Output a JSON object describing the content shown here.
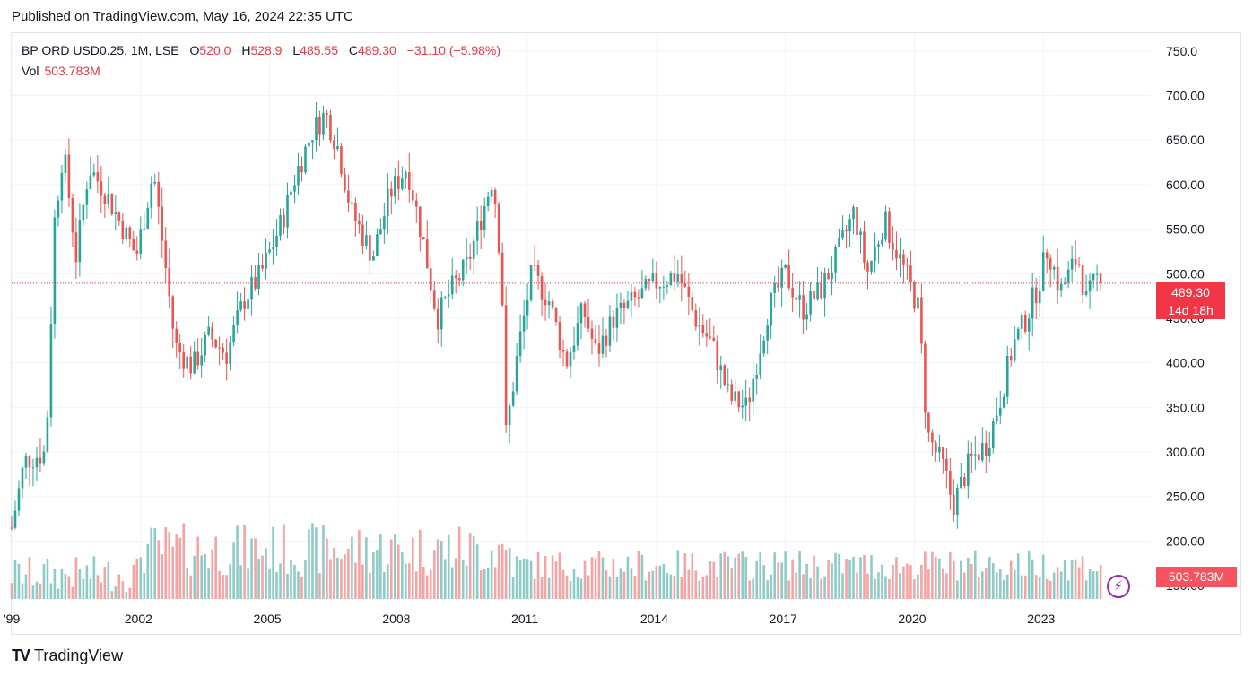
{
  "header": {
    "published": "Published on TradingView.com, May 16, 2024 22:35 UTC"
  },
  "legend": {
    "symbol": "BP ORD USD0.25, 1M, LSE",
    "open_label": "O",
    "open": "520.0",
    "high_label": "H",
    "high": "528.9",
    "low_label": "L",
    "low": "485.55",
    "close_label": "C",
    "close": "489.30",
    "change": "−31.10 (−5.98%)",
    "vol_label": "Vol",
    "vol": "503.783M"
  },
  "price_tag": {
    "price": "489.30",
    "countdown": "14d 18h"
  },
  "vol_tag": "503.783M",
  "footer": {
    "brand": "TradingView",
    "logo": "tradingview-logo-icon"
  },
  "colors": {
    "up": "#26a69a",
    "down": "#ef5350",
    "vol_up": "#8fcbc6",
    "vol_down": "#f5a3a3",
    "tag": "#f23645"
  },
  "chart_data": {
    "type": "candlestick",
    "y_axis_ticks": [
      "150.00",
      "200.00",
      "250.00",
      "300.00",
      "350.00",
      "400.00",
      "450.00",
      "500.00",
      "550.00",
      "600.00",
      "650.00",
      "700.00",
      "750.0"
    ],
    "x_axis_ticks": [
      "'99",
      "2002",
      "2005",
      "2008",
      "2011",
      "2014",
      "2017",
      "2020",
      "2023"
    ],
    "ylim": [
      135,
      770
    ],
    "xlim": [
      1999.0,
      2025.5
    ],
    "current_price": 489.3,
    "anchors": [
      [
        1999.0,
        215
      ],
      [
        1999.3,
        290
      ],
      [
        1999.8,
        300
      ],
      [
        2000.0,
        560
      ],
      [
        2000.2,
        640
      ],
      [
        2000.5,
        520
      ],
      [
        2000.8,
        620
      ],
      [
        2001.2,
        590
      ],
      [
        2001.5,
        560
      ],
      [
        2001.9,
        520
      ],
      [
        2002.3,
        615
      ],
      [
        2002.6,
        500
      ],
      [
        2002.8,
        420
      ],
      [
        2003.2,
        395
      ],
      [
        2003.6,
        430
      ],
      [
        2004.0,
        410
      ],
      [
        2004.4,
        470
      ],
      [
        2004.8,
        500
      ],
      [
        2005.3,
        560
      ],
      [
        2005.6,
        610
      ],
      [
        2006.0,
        660
      ],
      [
        2006.3,
        680
      ],
      [
        2006.6,
        640
      ],
      [
        2006.9,
        570
      ],
      [
        2007.4,
        520
      ],
      [
        2007.8,
        590
      ],
      [
        2008.2,
        620
      ],
      [
        2008.6,
        530
      ],
      [
        2008.9,
        450
      ],
      [
        2009.2,
        480
      ],
      [
        2009.6,
        510
      ],
      [
        2009.9,
        560
      ],
      [
        2010.2,
        610
      ],
      [
        2010.4,
        500
      ],
      [
        2010.5,
        320
      ],
      [
        2010.8,
        420
      ],
      [
        2011.1,
        500
      ],
      [
        2011.5,
        470
      ],
      [
        2011.9,
        400
      ],
      [
        2012.3,
        460
      ],
      [
        2012.6,
        410
      ],
      [
        2013.0,
        450
      ],
      [
        2013.5,
        470
      ],
      [
        2014.0,
        490
      ],
      [
        2014.5,
        500
      ],
      [
        2014.9,
        450
      ],
      [
        2015.3,
        420
      ],
      [
        2015.7,
        360
      ],
      [
        2016.1,
        350
      ],
      [
        2016.6,
        460
      ],
      [
        2017.0,
        500
      ],
      [
        2017.4,
        460
      ],
      [
        2017.8,
        480
      ],
      [
        2018.2,
        520
      ],
      [
        2018.6,
        570
      ],
      [
        2018.9,
        500
      ],
      [
        2019.3,
        560
      ],
      [
        2019.8,
        500
      ],
      [
        2020.1,
        460
      ],
      [
        2020.3,
        320
      ],
      [
        2020.7,
        280
      ],
      [
        2020.9,
        240
      ],
      [
        2021.3,
        290
      ],
      [
        2021.7,
        310
      ],
      [
        2022.0,
        360
      ],
      [
        2022.3,
        420
      ],
      [
        2022.6,
        450
      ],
      [
        2022.9,
        490
      ],
      [
        2023.1,
        530
      ],
      [
        2023.4,
        480
      ],
      [
        2023.8,
        520
      ],
      [
        2024.0,
        470
      ],
      [
        2024.3,
        500
      ],
      [
        2024.37,
        489.3
      ]
    ]
  }
}
